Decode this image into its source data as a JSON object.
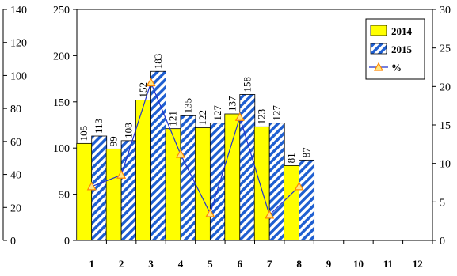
{
  "chart_data": {
    "type": "bar",
    "categories": [
      "1",
      "2",
      "3",
      "4",
      "5",
      "6",
      "7",
      "8",
      "9",
      "10",
      "11",
      "12"
    ],
    "series": [
      {
        "name": "2014",
        "type": "bar",
        "axis": "left",
        "color": "#ffff00",
        "values": [
          105,
          99,
          152,
          121,
          122,
          137,
          123,
          81,
          null,
          null,
          null,
          null
        ]
      },
      {
        "name": "2015",
        "type": "bar",
        "axis": "left",
        "color": "#1f5fd1",
        "pattern": "diagonal-stripes",
        "values": [
          113,
          108,
          183,
          135,
          127,
          158,
          127,
          87,
          null,
          null,
          null,
          null
        ]
      },
      {
        "name": "%",
        "type": "line",
        "axis": "right",
        "color": "#2233cc",
        "marker": "triangle",
        "marker_color": "#ff8800",
        "values": [
          7.0,
          8.5,
          20.5,
          11.2,
          3.5,
          16.0,
          3.3,
          7.0,
          null,
          null,
          null,
          null
        ]
      }
    ],
    "y_left": {
      "ylim": [
        0,
        250
      ],
      "ticks": [
        "0",
        "50",
        "100",
        "150",
        "200",
        "250"
      ]
    },
    "y_right": {
      "ylim": [
        0,
        30
      ],
      "ticks": [
        "0",
        "5",
        "10",
        "15",
        "20",
        "25",
        "30"
      ]
    },
    "y_outer_left": {
      "ylim": [
        0,
        140
      ],
      "ticks": [
        "0",
        "20",
        "40",
        "60",
        "80",
        "100",
        "120",
        "140"
      ]
    },
    "legend": {
      "placement": "top-right",
      "labels": [
        "2014",
        "2015",
        "%"
      ]
    },
    "grid": false
  }
}
